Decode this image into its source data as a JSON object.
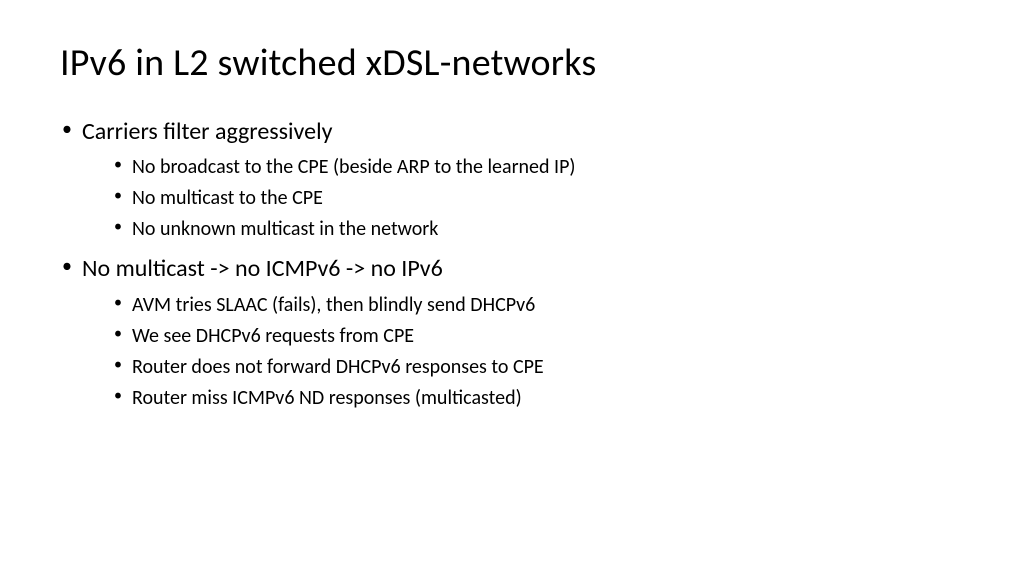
{
  "title": "IPv6 in L2 switched xDSL-networks",
  "bullets": {
    "b1": "Carriers filter aggressively",
    "b1_1": "No broadcast to the CPE (beside ARP to the learned IP)",
    "b1_2": "No multicast to the CPE",
    "b1_3": "No unknown multicast in the network",
    "b2": "No multicast -> no ICMPv6 -> no IPv6",
    "b2_1": "AVM tries SLAAC (fails), then blindly send DHCPv6",
    "b2_2": "We see DHCPv6 requests from CPE",
    "b2_3": "Router does not forward DHCPv6 responses to CPE",
    "b2_4": "Router miss ICMPv6 ND responses (multicasted)"
  },
  "style": {
    "background_color": "#ffffff",
    "text_color": "#000000",
    "title_fontsize": 38,
    "level1_fontsize": 24,
    "level2_fontsize": 20,
    "font_family": "Calibri"
  }
}
